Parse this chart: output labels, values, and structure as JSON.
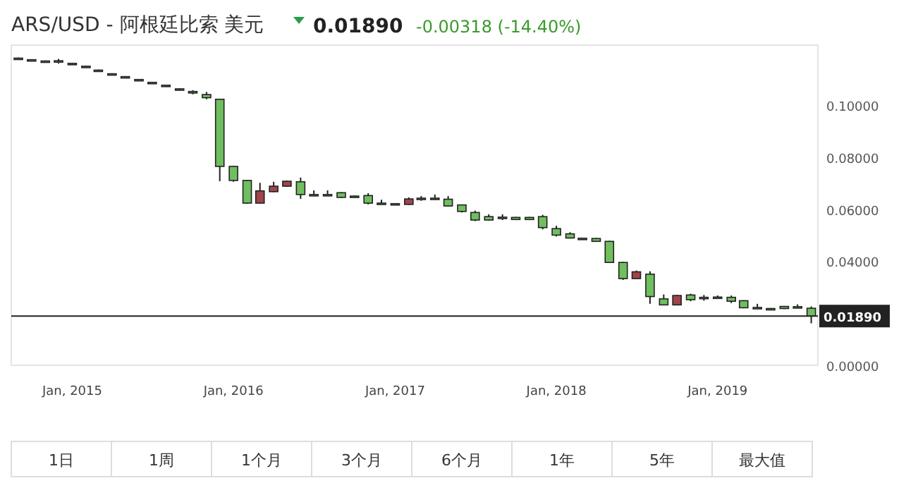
{
  "chart_data": {
    "type": "candlestick",
    "title": "ARS/USD - 阿根廷比索 美元",
    "subtitle": "0.01890",
    "annotations": [
      "-0.00318 (-14.40%)",
      "1日",
      "1周",
      "1个月",
      "3个月",
      "6个月",
      "1年",
      "5年",
      "最大值"
    ],
    "x": [
      "2014-09",
      "2014-10",
      "2014-11",
      "2014-12",
      "2015-01",
      "2015-02",
      "2015-03",
      "2015-04",
      "2015-05",
      "2015-06",
      "2015-07",
      "2015-08",
      "2015-09",
      "2015-10",
      "2015-11",
      "2015-12",
      "2016-01",
      "2016-02",
      "2016-03",
      "2016-04",
      "2016-05",
      "2016-06",
      "2016-07",
      "2016-08",
      "2016-09",
      "2016-10",
      "2016-11",
      "2016-12",
      "2017-01",
      "2017-02",
      "2017-03",
      "2017-04",
      "2017-05",
      "2017-06",
      "2017-07",
      "2017-08",
      "2017-09",
      "2017-10",
      "2017-11",
      "2017-12",
      "2018-01",
      "2018-02",
      "2018-03",
      "2018-04",
      "2018-05",
      "2018-06",
      "2018-07",
      "2018-08",
      "2018-09",
      "2018-10",
      "2018-11",
      "2018-12",
      "2019-01",
      "2019-02",
      "2019-03",
      "2019-04",
      "2019-05",
      "2019-06",
      "2019-07",
      "2019-08"
    ],
    "ohlc": [
      [
        0.118,
        0.1182,
        0.1174,
        0.1176
      ],
      [
        0.1174,
        0.1176,
        0.1168,
        0.117
      ],
      [
        0.1169,
        0.1171,
        0.1165,
        0.1166
      ],
      [
        0.117,
        0.1177,
        0.1159,
        0.1166
      ],
      [
        0.116,
        0.1162,
        0.1154,
        0.1156
      ],
      [
        0.1149,
        0.1151,
        0.1143,
        0.1145
      ],
      [
        0.1134,
        0.1136,
        0.1128,
        0.113
      ],
      [
        0.112,
        0.1122,
        0.1114,
        0.1116
      ],
      [
        0.1109,
        0.1111,
        0.1103,
        0.1105
      ],
      [
        0.1098,
        0.11,
        0.1092,
        0.1094
      ],
      [
        0.1087,
        0.1089,
        0.1081,
        0.1083
      ],
      [
        0.1076,
        0.1078,
        0.107,
        0.1072
      ],
      [
        0.1062,
        0.1064,
        0.1056,
        0.1058
      ],
      [
        0.1052,
        0.1057,
        0.1041,
        0.1046
      ],
      [
        0.104,
        0.105,
        0.1022,
        0.1028
      ],
      [
        0.1022,
        0.1022,
        0.0707,
        0.0764
      ],
      [
        0.0764,
        0.0766,
        0.0705,
        0.071
      ],
      [
        0.071,
        0.0712,
        0.0621,
        0.0623
      ],
      [
        0.0623,
        0.0701,
        0.0621,
        0.067
      ],
      [
        0.0667,
        0.0705,
        0.0665,
        0.0688
      ],
      [
        0.0688,
        0.0709,
        0.0686,
        0.0707
      ],
      [
        0.0705,
        0.0721,
        0.0639,
        0.0656
      ],
      [
        0.0656,
        0.0672,
        0.0652,
        0.0654
      ],
      [
        0.0656,
        0.0672,
        0.0654,
        0.0655
      ],
      [
        0.0663,
        0.0665,
        0.0643,
        0.0645
      ],
      [
        0.065,
        0.0652,
        0.0647,
        0.0649
      ],
      [
        0.0652,
        0.0661,
        0.0618,
        0.0623
      ],
      [
        0.0623,
        0.0636,
        0.062,
        0.0621
      ],
      [
        0.0621,
        0.0623,
        0.0619,
        0.062
      ],
      [
        0.0618,
        0.0645,
        0.0616,
        0.0639
      ],
      [
        0.0642,
        0.065,
        0.0632,
        0.0641
      ],
      [
        0.0642,
        0.0656,
        0.064,
        0.0641
      ],
      [
        0.0638,
        0.065,
        0.061,
        0.0612
      ],
      [
        0.0616,
        0.0618,
        0.0587,
        0.0591
      ],
      [
        0.0587,
        0.0594,
        0.0554,
        0.0558
      ],
      [
        0.0571,
        0.058,
        0.0556,
        0.0558
      ],
      [
        0.0569,
        0.058,
        0.0558,
        0.0568
      ],
      [
        0.0568,
        0.057,
        0.0558,
        0.056
      ],
      [
        0.0568,
        0.057,
        0.0558,
        0.056
      ],
      [
        0.0571,
        0.0578,
        0.0522,
        0.0529
      ],
      [
        0.0525,
        0.0536,
        0.0495,
        0.05
      ],
      [
        0.0505,
        0.0511,
        0.0487,
        0.0489
      ],
      [
        0.0488,
        0.049,
        0.0486,
        0.0487
      ],
      [
        0.0487,
        0.0489,
        0.0474,
        0.0476
      ],
      [
        0.0476,
        0.0478,
        0.0393,
        0.0395
      ],
      [
        0.0395,
        0.0397,
        0.0328,
        0.0333
      ],
      [
        0.0333,
        0.0364,
        0.0331,
        0.0359
      ],
      [
        0.035,
        0.0361,
        0.0236,
        0.0264
      ],
      [
        0.0255,
        0.0272,
        0.023,
        0.0232
      ],
      [
        0.0232,
        0.027,
        0.023,
        0.0268
      ],
      [
        0.027,
        0.0275,
        0.0246,
        0.0252
      ],
      [
        0.0261,
        0.027,
        0.0248,
        0.026
      ],
      [
        0.0262,
        0.0268,
        0.0258,
        0.026
      ],
      [
        0.0261,
        0.0268,
        0.0239,
        0.0246
      ],
      [
        0.0248,
        0.025,
        0.0219,
        0.0221
      ],
      [
        0.0222,
        0.0236,
        0.0218,
        0.022
      ],
      [
        0.0218,
        0.022,
        0.0216,
        0.0217
      ],
      [
        0.0226,
        0.0228,
        0.0216,
        0.0218
      ],
      [
        0.0225,
        0.0234,
        0.0222,
        0.0224
      ],
      [
        0.0219,
        0.0226,
        0.0161,
        0.0189
      ]
    ],
    "colors": [
      "#6fbf5f",
      "#6fbf5f",
      "#6fbf5f",
      "#6fbf5f",
      "#6fbf5f",
      "#6fbf5f",
      "#6fbf5f",
      "#6fbf5f",
      "#6fbf5f",
      "#6fbf5f",
      "#6fbf5f",
      "#6fbf5f",
      "#6fbf5f",
      "#6fbf5f",
      "#6fbf5f",
      "#6fbf5f",
      "#6fbf5f",
      "#6fbf5f",
      "#a0454a",
      "#a0454a",
      "#a0454a",
      "#6fbf5f",
      "#6fbf5f",
      "#6fbf5f",
      "#6fbf5f",
      "#6fbf5f",
      "#6fbf5f",
      "#6fbf5f",
      "#6fbf5f",
      "#a0454a",
      "#6fbf5f",
      "#6fbf5f",
      "#6fbf5f",
      "#6fbf5f",
      "#6fbf5f",
      "#6fbf5f",
      "#6fbf5f",
      "#6fbf5f",
      "#6fbf5f",
      "#6fbf5f",
      "#6fbf5f",
      "#6fbf5f",
      "#6fbf5f",
      "#6fbf5f",
      "#6fbf5f",
      "#6fbf5f",
      "#a0454a",
      "#6fbf5f",
      "#6fbf5f",
      "#a0454a",
      "#6fbf5f",
      "#6fbf5f",
      "#6fbf5f",
      "#6fbf5f",
      "#6fbf5f",
      "#6fbf5f",
      "#6fbf5f",
      "#6fbf5f",
      "#6fbf5f",
      "#6fbf5f"
    ],
    "xlim": [
      "2014-08-16",
      "2019-08-16"
    ],
    "xticks": [
      {
        "value": "2015-01",
        "label": "Jan, 2015"
      },
      {
        "value": "2016-01",
        "label": "Jan, 2016"
      },
      {
        "value": "2017-01",
        "label": "Jan, 2017"
      },
      {
        "value": "2018-01",
        "label": "Jan, 2018"
      },
      {
        "value": "2019-01",
        "label": "Jan, 2019"
      }
    ],
    "ylim": [
      0,
      0.123
    ],
    "yticks": [
      {
        "value": 0,
        "label": "0.00000"
      },
      {
        "value": 0.04,
        "label": "0.04000"
      },
      {
        "value": 0.06,
        "label": "0.06000"
      },
      {
        "value": 0.08,
        "label": "0.08000"
      },
      {
        "value": 0.1,
        "label": "0.10000"
      }
    ],
    "ref_lines": [
      {
        "axis": "y",
        "value": 0.0189,
        "label": "0.01890",
        "color": "#222222"
      }
    ]
  }
}
